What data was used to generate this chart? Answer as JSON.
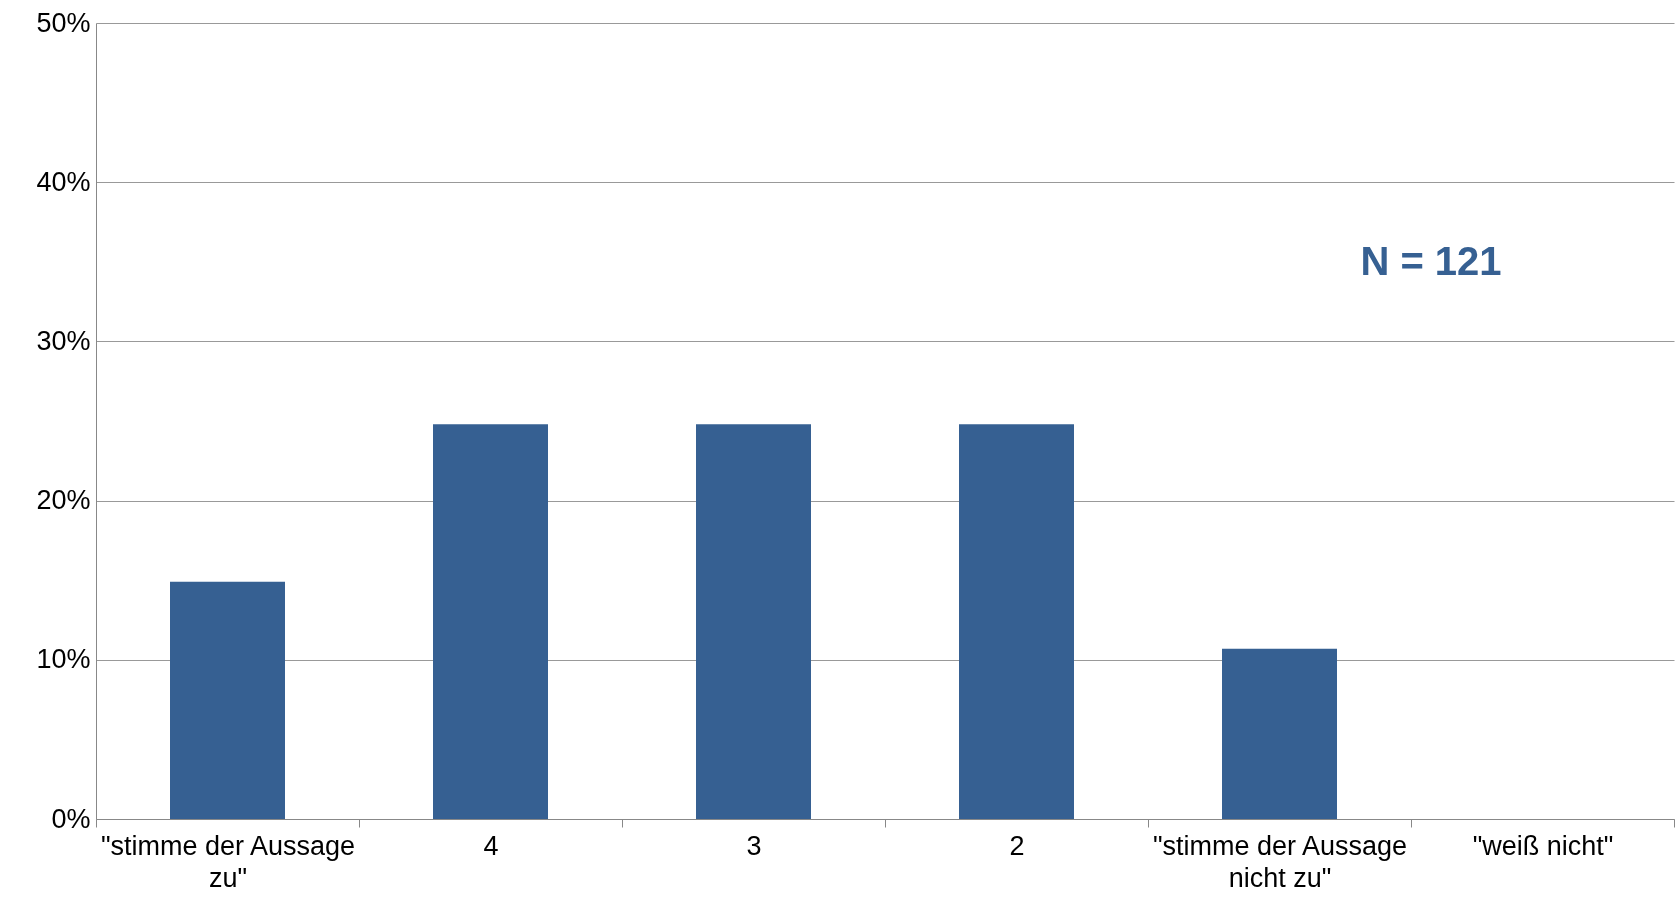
{
  "chart_data": {
    "type": "bar",
    "categories": [
      "\"stimme der Aussage zu\"",
      "4",
      "3",
      "2",
      "\"stimme der Aussage nicht zu\"",
      "\"weiß nicht\""
    ],
    "values": [
      14.9,
      24.8,
      24.8,
      24.8,
      10.7,
      0
    ],
    "color": "#366092",
    "ylim": [
      0,
      50
    ],
    "yticks": [
      {
        "value": 0,
        "label": "0%"
      },
      {
        "value": 10,
        "label": "10%"
      },
      {
        "value": 20,
        "label": "20%"
      },
      {
        "value": 30,
        "label": "30%"
      },
      {
        "value": 40,
        "label": "40%"
      },
      {
        "value": 50,
        "label": "50%"
      }
    ],
    "grid": "y",
    "annotations": [
      "N = 121"
    ]
  }
}
